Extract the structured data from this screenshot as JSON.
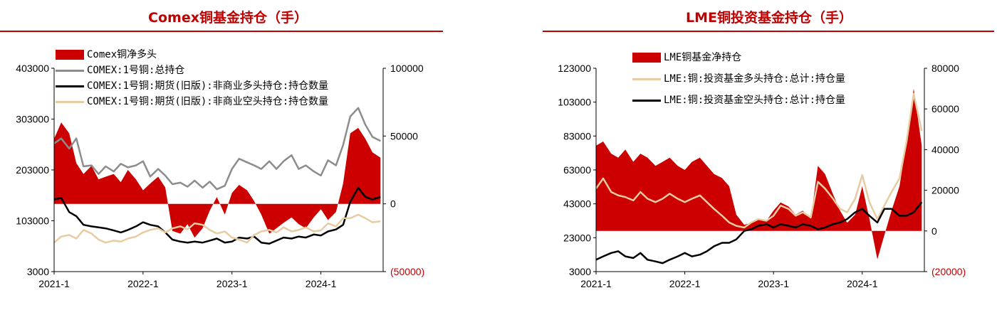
{
  "left_chart": {
    "title": "Comex铜基金持仓（手）",
    "chart_data": {
      "type": "area+line",
      "x_ticks": [
        "2021-1",
        "2022-1",
        "2023-1",
        "2024-1"
      ],
      "x_range": [
        2021.0,
        2024.7
      ],
      "left_axis": {
        "ticks": [
          "403000",
          "303000",
          "203000",
          "103000",
          "3000"
        ],
        "ylim": [
          3000,
          403000
        ]
      },
      "right_axis": {
        "ticks": [
          "100000",
          "50000",
          "0",
          "(50000)"
        ],
        "ylim": [
          -50000,
          100000
        ],
        "tick_colors": [
          "#000000",
          "#000000",
          "#000000",
          "#c00000"
        ]
      },
      "legend_placement": "top-left",
      "series": [
        {
          "name": "Comex铜净多头",
          "axis": "right",
          "kind": "area",
          "color": "#cc0000",
          "x": [
            2021.0,
            2021.08,
            2021.17,
            2021.25,
            2021.33,
            2021.42,
            2021.5,
            2021.58,
            2021.67,
            2021.75,
            2021.83,
            2021.92,
            2022.0,
            2022.08,
            2022.17,
            2022.25,
            2022.33,
            2022.42,
            2022.5,
            2022.58,
            2022.67,
            2022.75,
            2022.83,
            2022.92,
            2023.0,
            2023.08,
            2023.17,
            2023.25,
            2023.33,
            2023.42,
            2023.5,
            2023.58,
            2023.67,
            2023.75,
            2023.83,
            2023.92,
            2024.0,
            2024.08,
            2024.17,
            2024.25,
            2024.33,
            2024.42,
            2024.5,
            2024.58,
            2024.67
          ],
          "y": [
            48000,
            60000,
            52000,
            30000,
            22000,
            28000,
            18000,
            20000,
            22000,
            16000,
            25000,
            18000,
            10000,
            15000,
            20000,
            12000,
            -20000,
            -22000,
            -15000,
            -25000,
            -18000,
            -5000,
            5000,
            -8000,
            8000,
            14000,
            10000,
            2000,
            -8000,
            -22000,
            -18000,
            -14000,
            -10000,
            -15000,
            -18000,
            -10000,
            -4000,
            -12000,
            -6000,
            15000,
            52000,
            56000,
            48000,
            38000,
            34000
          ]
        },
        {
          "name": "COMEX:1号铜:总持仓",
          "axis": "left",
          "kind": "line",
          "color": "#8c8c8c",
          "x": [
            2021.0,
            2021.08,
            2021.17,
            2021.25,
            2021.33,
            2021.42,
            2021.5,
            2021.58,
            2021.67,
            2021.75,
            2021.83,
            2021.92,
            2022.0,
            2022.08,
            2022.17,
            2022.25,
            2022.33,
            2022.42,
            2022.5,
            2022.58,
            2022.67,
            2022.75,
            2022.83,
            2022.92,
            2023.0,
            2023.08,
            2023.17,
            2023.25,
            2023.33,
            2023.42,
            2023.5,
            2023.58,
            2023.67,
            2023.75,
            2023.83,
            2023.92,
            2024.0,
            2024.08,
            2024.17,
            2024.25,
            2024.33,
            2024.42,
            2024.5,
            2024.58,
            2024.67
          ],
          "y": [
            255000,
            265000,
            245000,
            265000,
            210000,
            212000,
            195000,
            210000,
            200000,
            215000,
            208000,
            212000,
            220000,
            190000,
            205000,
            192000,
            175000,
            178000,
            170000,
            182000,
            168000,
            180000,
            165000,
            172000,
            205000,
            225000,
            218000,
            212000,
            205000,
            220000,
            205000,
            220000,
            232000,
            205000,
            212000,
            200000,
            192000,
            222000,
            212000,
            252000,
            308000,
            325000,
            292000,
            268000,
            260000
          ]
        },
        {
          "name": "COMEX:1号铜:期货(旧版):非商业多头持仓:持仓数量",
          "axis": "left",
          "kind": "line",
          "color": "#000000",
          "x": [
            2021.0,
            2021.08,
            2021.17,
            2021.25,
            2021.33,
            2021.42,
            2021.5,
            2021.58,
            2021.67,
            2021.75,
            2021.83,
            2021.92,
            2022.0,
            2022.08,
            2022.17,
            2022.25,
            2022.33,
            2022.42,
            2022.5,
            2022.58,
            2022.67,
            2022.75,
            2022.83,
            2022.92,
            2023.0,
            2023.08,
            2023.17,
            2023.25,
            2023.33,
            2023.42,
            2023.5,
            2023.58,
            2023.67,
            2023.75,
            2023.83,
            2023.92,
            2024.0,
            2024.08,
            2024.17,
            2024.25,
            2024.33,
            2024.42,
            2024.5,
            2024.58,
            2024.67
          ],
          "y": [
            145000,
            148000,
            120000,
            112000,
            95000,
            92000,
            90000,
            88000,
            84000,
            80000,
            85000,
            92000,
            100000,
            95000,
            92000,
            80000,
            66000,
            62000,
            60000,
            62000,
            60000,
            64000,
            68000,
            60000,
            62000,
            70000,
            68000,
            72000,
            60000,
            58000,
            64000,
            70000,
            68000,
            72000,
            70000,
            76000,
            74000,
            82000,
            86000,
            95000,
            140000,
            168000,
            150000,
            145000,
            150000
          ]
        },
        {
          "name": "COMEX:1号铜:期货(旧版):非商业空头持仓:持仓数量",
          "axis": "left",
          "kind": "line",
          "color": "#e8cba2",
          "x": [
            2021.0,
            2021.08,
            2021.17,
            2021.25,
            2021.33,
            2021.42,
            2021.5,
            2021.58,
            2021.67,
            2021.75,
            2021.83,
            2021.92,
            2022.0,
            2022.08,
            2022.17,
            2022.25,
            2022.33,
            2022.42,
            2022.5,
            2022.58,
            2022.67,
            2022.75,
            2022.83,
            2022.92,
            2023.0,
            2023.08,
            2023.17,
            2023.25,
            2023.33,
            2023.42,
            2023.5,
            2023.58,
            2023.67,
            2023.75,
            2023.83,
            2023.92,
            2024.0,
            2024.08,
            2024.17,
            2024.25,
            2024.33,
            2024.42,
            2024.5,
            2024.58,
            2024.67
          ],
          "y": [
            60000,
            72000,
            75000,
            68000,
            85000,
            78000,
            66000,
            60000,
            64000,
            62000,
            68000,
            72000,
            80000,
            85000,
            88000,
            80000,
            88000,
            92000,
            86000,
            98000,
            95000,
            85000,
            78000,
            82000,
            70000,
            66000,
            60000,
            75000,
            82000,
            85000,
            80000,
            90000,
            82000,
            85000,
            90000,
            82000,
            84000,
            98000,
            92000,
            108000,
            108000,
            115000,
            108000,
            100000,
            102000
          ]
        }
      ]
    },
    "legend": [
      "Comex铜净多头",
      "COMEX:1号铜:总持仓",
      "COMEX:1号铜:期货(旧版):非商业多头持仓:持仓数量",
      "COMEX:1号铜:期货(旧版):非商业空头持仓:持仓数量"
    ]
  },
  "right_chart": {
    "title": "LME铜投资基金持仓（手）",
    "chart_data": {
      "type": "area+line",
      "x_ticks": [
        "2021-1",
        "2022-1",
        "2023-1",
        "2024-1"
      ],
      "x_range": [
        2021.0,
        2024.7
      ],
      "left_axis": {
        "ticks": [
          "123000",
          "103000",
          "83000",
          "63000",
          "43000",
          "23000",
          "3000"
        ],
        "ylim": [
          3000,
          123000
        ]
      },
      "right_axis": {
        "ticks": [
          "80000",
          "60000",
          "40000",
          "20000",
          "0",
          "(20000)"
        ],
        "ylim": [
          -20000,
          80000
        ],
        "tick_colors": [
          "#000000",
          "#000000",
          "#000000",
          "#000000",
          "#000000",
          "#c00000"
        ]
      },
      "legend_placement": "top-left",
      "series": [
        {
          "name": "LME铜基金净持仓",
          "axis": "right",
          "kind": "area",
          "color": "#cc0000",
          "x": [
            2021.0,
            2021.08,
            2021.17,
            2021.25,
            2021.33,
            2021.42,
            2021.5,
            2021.58,
            2021.67,
            2021.75,
            2021.83,
            2021.92,
            2022.0,
            2022.08,
            2022.17,
            2022.25,
            2022.33,
            2022.42,
            2022.5,
            2022.58,
            2022.67,
            2022.75,
            2022.83,
            2022.92,
            2023.0,
            2023.08,
            2023.17,
            2023.25,
            2023.33,
            2023.42,
            2023.5,
            2023.58,
            2023.67,
            2023.75,
            2023.83,
            2023.92,
            2024.0,
            2024.08,
            2024.17,
            2024.25,
            2024.33,
            2024.42,
            2024.5,
            2024.58,
            2024.67
          ],
          "y": [
            42000,
            44000,
            38000,
            36000,
            40000,
            34000,
            38000,
            36000,
            32000,
            34000,
            36000,
            32000,
            30000,
            34000,
            36000,
            32000,
            28000,
            26000,
            22000,
            8000,
            3000,
            4000,
            6000,
            5000,
            10000,
            14000,
            12000,
            8000,
            10000,
            6000,
            32000,
            28000,
            18000,
            10000,
            4000,
            8000,
            22000,
            6000,
            -14000,
            -2000,
            10000,
            22000,
            44000,
            70000,
            42000
          ]
        },
        {
          "name": "LME:铜:投资基金多头持仓:总计:持仓量",
          "axis": "left",
          "kind": "line",
          "color": "#e8cba2",
          "x": [
            2021.0,
            2021.08,
            2021.17,
            2021.25,
            2021.33,
            2021.42,
            2021.5,
            2021.58,
            2021.67,
            2021.75,
            2021.83,
            2021.92,
            2022.0,
            2022.08,
            2022.17,
            2022.25,
            2022.33,
            2022.42,
            2022.5,
            2022.58,
            2022.67,
            2022.75,
            2022.83,
            2022.92,
            2023.0,
            2023.08,
            2023.17,
            2023.25,
            2023.33,
            2023.42,
            2023.5,
            2023.58,
            2023.67,
            2023.75,
            2023.83,
            2023.92,
            2024.0,
            2024.08,
            2024.17,
            2024.25,
            2024.33,
            2024.42,
            2024.5,
            2024.58,
            2024.67
          ],
          "y": [
            52000,
            58000,
            50000,
            48000,
            47000,
            45000,
            50000,
            46000,
            44000,
            46000,
            49000,
            46000,
            44000,
            46000,
            48000,
            44000,
            40000,
            36000,
            32000,
            30000,
            29000,
            32000,
            34000,
            33000,
            36000,
            42000,
            40000,
            36000,
            38000,
            35000,
            56000,
            52000,
            46000,
            40000,
            38000,
            46000,
            60000,
            44000,
            34000,
            42000,
            50000,
            58000,
            80000,
            108000,
            86000
          ]
        },
        {
          "name": "LME:铜:投资基金空头持仓:总计:持仓量",
          "axis": "left",
          "kind": "line",
          "color": "#000000",
          "x": [
            2021.0,
            2021.08,
            2021.17,
            2021.25,
            2021.33,
            2021.42,
            2021.5,
            2021.58,
            2021.67,
            2021.75,
            2021.83,
            2021.92,
            2022.0,
            2022.08,
            2022.17,
            2022.25,
            2022.33,
            2022.42,
            2022.5,
            2022.58,
            2022.67,
            2022.75,
            2022.83,
            2022.92,
            2023.0,
            2023.08,
            2023.17,
            2023.25,
            2023.33,
            2023.42,
            2023.5,
            2023.58,
            2023.67,
            2023.75,
            2023.83,
            2023.92,
            2024.0,
            2024.08,
            2024.17,
            2024.25,
            2024.33,
            2024.42,
            2024.5,
            2024.58,
            2024.67
          ],
          "y": [
            10000,
            12000,
            14000,
            15000,
            12000,
            11000,
            14000,
            10000,
            9000,
            8000,
            10000,
            12000,
            14000,
            12000,
            13000,
            15000,
            18000,
            20000,
            20000,
            22000,
            27000,
            28000,
            30000,
            31000,
            29000,
            31000,
            30000,
            29000,
            31000,
            30000,
            28000,
            29000,
            31000,
            32000,
            34000,
            38000,
            40000,
            36000,
            32000,
            40000,
            40000,
            36000,
            36000,
            38000,
            44000
          ]
        }
      ]
    },
    "legend": [
      "LME铜基金净持仓",
      "LME:铜:投资基金多头持仓:总计:持仓量",
      "LME:铜:投资基金空头持仓:总计:持仓量"
    ]
  }
}
